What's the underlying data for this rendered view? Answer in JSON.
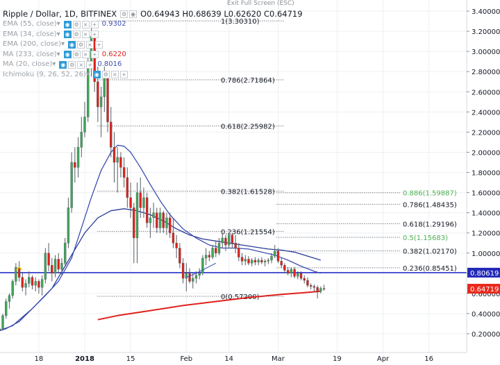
{
  "header": {
    "symbol": "Ripple / Dollar, 1D, BITFINEX",
    "ohlc": [
      {
        "label": "O",
        "value": "0.64943"
      },
      {
        "label": "H",
        "value": "0.68639"
      },
      {
        "label": "L",
        "value": "0.62620"
      },
      {
        "label": "C",
        "value": "0.64719"
      }
    ],
    "exit_fullscreen": "Exit Full Screen (ESC)"
  },
  "indicators": [
    {
      "name": "EMA (55, close)",
      "value": "0.9302",
      "value_color": "#3b4db0"
    },
    {
      "name": "EMA (34, close)",
      "value": "",
      "value_color": ""
    },
    {
      "name": "EMA (200, close)",
      "value": "",
      "value_color": ""
    },
    {
      "name": "MA (233, close)",
      "value": "0.6220",
      "value_color": "#e0201b"
    },
    {
      "name": "MA (20, close)",
      "value": "0.8016",
      "value_color": "#3b4db0"
    },
    {
      "name": "Ichimoku (9, 26, 52, 26)",
      "value": "",
      "value_color": ""
    }
  ],
  "chart_data": {
    "type": "candlestick",
    "ylim": [
      0.2,
      3.45
    ],
    "y_ticks": [
      "0.20000",
      "0.40000",
      "0.60000",
      "0.80000",
      "1.00000",
      "1.20000",
      "1.40000",
      "1.60000",
      "1.80000",
      "2.00000",
      "2.20000",
      "2.40000",
      "2.60000",
      "2.80000",
      "3.00000",
      "3.20000",
      "3.40000"
    ],
    "x_ticks": [
      "18",
      "2018",
      "15",
      "Feb",
      "14",
      "Mar",
      "19",
      "Apr",
      "16"
    ],
    "x_tick_days": [
      -14,
      0,
      14,
      31,
      44,
      59,
      77,
      91,
      105
    ],
    "x_tick_bold": [
      "2018"
    ],
    "candles": [
      [
        -27,
        0.23,
        0.24,
        0.22,
        0.24
      ],
      [
        -26,
        0.24,
        0.26,
        0.22,
        0.25
      ],
      [
        -25,
        0.25,
        0.4,
        0.24,
        0.38
      ],
      [
        -24,
        0.38,
        0.55,
        0.35,
        0.52
      ],
      [
        -23,
        0.52,
        0.6,
        0.45,
        0.58
      ],
      [
        -22,
        0.58,
        0.74,
        0.55,
        0.72
      ],
      [
        -21,
        0.72,
        0.9,
        0.68,
        0.86
      ],
      [
        -20,
        0.86,
        0.92,
        0.72,
        0.76
      ],
      [
        -19,
        0.76,
        0.8,
        0.62,
        0.66
      ],
      [
        -18,
        0.66,
        0.74,
        0.58,
        0.7
      ],
      [
        -17,
        0.7,
        0.82,
        0.66,
        0.76
      ],
      [
        -16,
        0.76,
        0.78,
        0.64,
        0.68
      ],
      [
        -15,
        0.68,
        0.76,
        0.62,
        0.72
      ],
      [
        -14,
        0.72,
        0.74,
        0.6,
        0.66
      ],
      [
        -13,
        0.66,
        0.78,
        0.58,
        0.74
      ],
      [
        -12,
        0.74,
        1.05,
        0.7,
        1.0
      ],
      [
        -11,
        1.0,
        1.1,
        0.82,
        0.88
      ],
      [
        -10,
        0.88,
        0.95,
        0.72,
        0.8
      ],
      [
        -9,
        0.8,
        0.98,
        0.76,
        0.94
      ],
      [
        -8,
        0.94,
        1.0,
        0.8,
        0.84
      ],
      [
        -7,
        0.84,
        0.95,
        0.78,
        0.9
      ],
      [
        -6,
        0.9,
        1.15,
        0.88,
        1.1
      ],
      [
        -5,
        1.1,
        1.55,
        1.05,
        1.45
      ],
      [
        -4,
        1.45,
        2.0,
        1.4,
        1.9
      ],
      [
        -3,
        1.9,
        2.05,
        1.7,
        1.85
      ],
      [
        -2,
        1.85,
        2.15,
        1.75,
        2.05
      ],
      [
        -1,
        2.05,
        2.35,
        1.95,
        2.2
      ],
      [
        0,
        2.2,
        2.5,
        2.15,
        2.35
      ],
      [
        1,
        2.35,
        2.95,
        2.3,
        2.85
      ],
      [
        2,
        2.85,
        3.3,
        2.75,
        3.15
      ],
      [
        3,
        3.15,
        3.2,
        2.6,
        2.7
      ],
      [
        4,
        2.7,
        2.85,
        2.3,
        2.45
      ],
      [
        5,
        2.45,
        2.65,
        2.15,
        2.55
      ],
      [
        6,
        2.55,
        2.85,
        2.4,
        2.75
      ],
      [
        7,
        2.75,
        2.8,
        2.2,
        2.3
      ],
      [
        8,
        2.3,
        2.45,
        1.95,
        2.05
      ],
      [
        9,
        2.05,
        2.2,
        1.7,
        1.9
      ],
      [
        10,
        1.9,
        2.05,
        1.6,
        1.95
      ],
      [
        11,
        1.95,
        2.0,
        1.75,
        1.85
      ],
      [
        12,
        1.85,
        1.95,
        1.65,
        1.75
      ],
      [
        13,
        1.75,
        1.85,
        1.45,
        1.55
      ],
      [
        14,
        1.55,
        1.7,
        1.35,
        1.45
      ],
      [
        15,
        1.45,
        1.5,
        0.9,
        1.15
      ],
      [
        16,
        1.15,
        1.7,
        0.9,
        1.6
      ],
      [
        17,
        1.6,
        1.75,
        1.35,
        1.45
      ],
      [
        18,
        1.45,
        1.65,
        1.35,
        1.55
      ],
      [
        19,
        1.55,
        1.6,
        1.25,
        1.3
      ],
      [
        20,
        1.3,
        1.45,
        1.15,
        1.35
      ],
      [
        21,
        1.35,
        1.5,
        1.25,
        1.4
      ],
      [
        22,
        1.4,
        1.45,
        1.2,
        1.25
      ],
      [
        23,
        1.25,
        1.45,
        1.2,
        1.4
      ],
      [
        24,
        1.4,
        1.42,
        1.2,
        1.25
      ],
      [
        25,
        1.25,
        1.4,
        1.18,
        1.35
      ],
      [
        26,
        1.35,
        1.4,
        1.15,
        1.2
      ],
      [
        27,
        1.2,
        1.35,
        1.05,
        1.1
      ],
      [
        28,
        1.1,
        1.18,
        0.95,
        1.05
      ],
      [
        29,
        1.05,
        1.1,
        0.85,
        0.9
      ],
      [
        30,
        0.9,
        0.95,
        0.7,
        0.75
      ],
      [
        31,
        0.75,
        0.9,
        0.62,
        0.8
      ],
      [
        32,
        0.8,
        0.85,
        0.7,
        0.72
      ],
      [
        33,
        0.72,
        0.8,
        0.65,
        0.75
      ],
      [
        34,
        0.75,
        0.82,
        0.7,
        0.78
      ],
      [
        35,
        0.78,
        0.85,
        0.74,
        0.8
      ],
      [
        36,
        0.8,
        0.98,
        0.78,
        0.95
      ],
      [
        37,
        0.95,
        1.05,
        0.88,
        0.98
      ],
      [
        38,
        0.98,
        1.02,
        0.92,
        0.96
      ],
      [
        39,
        0.96,
        1.08,
        0.94,
        1.05
      ],
      [
        40,
        1.05,
        1.12,
        0.96,
        1.0
      ],
      [
        41,
        1.0,
        1.15,
        0.98,
        1.1
      ],
      [
        42,
        1.1,
        1.2,
        1.05,
        1.15
      ],
      [
        43,
        1.15,
        1.18,
        1.02,
        1.08
      ],
      [
        44,
        1.08,
        1.2,
        1.05,
        1.18
      ],
      [
        45,
        1.18,
        1.2,
        1.05,
        1.1
      ],
      [
        46,
        1.1,
        1.18,
        1.0,
        1.05
      ],
      [
        47,
        1.05,
        1.1,
        0.92,
        0.96
      ],
      [
        48,
        0.96,
        1.0,
        0.88,
        0.92
      ],
      [
        49,
        0.92,
        0.98,
        0.88,
        0.94
      ],
      [
        50,
        0.94,
        0.97,
        0.88,
        0.9
      ],
      [
        51,
        0.9,
        0.95,
        0.87,
        0.93
      ],
      [
        52,
        0.93,
        0.96,
        0.88,
        0.91
      ],
      [
        53,
        0.91,
        0.95,
        0.88,
        0.93
      ],
      [
        54,
        0.93,
        0.96,
        0.89,
        0.91
      ],
      [
        55,
        0.91,
        0.94,
        0.87,
        0.92
      ],
      [
        56,
        0.92,
        0.95,
        0.89,
        0.93
      ],
      [
        57,
        0.93,
        1.0,
        0.9,
        0.97
      ],
      [
        58,
        0.97,
        1.08,
        0.95,
        1.02
      ],
      [
        59,
        1.02,
        1.05,
        0.9,
        0.92
      ],
      [
        60,
        0.92,
        0.95,
        0.85,
        0.88
      ],
      [
        61,
        0.88,
        0.9,
        0.8,
        0.83
      ],
      [
        62,
        0.83,
        0.86,
        0.78,
        0.8
      ],
      [
        63,
        0.8,
        0.86,
        0.76,
        0.84
      ],
      [
        64,
        0.84,
        0.86,
        0.75,
        0.77
      ],
      [
        65,
        0.77,
        0.82,
        0.74,
        0.8
      ],
      [
        66,
        0.8,
        0.82,
        0.73,
        0.75
      ],
      [
        67,
        0.75,
        0.78,
        0.7,
        0.73
      ],
      [
        68,
        0.73,
        0.76,
        0.66,
        0.68
      ],
      [
        69,
        0.68,
        0.7,
        0.64,
        0.67
      ],
      [
        70,
        0.67,
        0.69,
        0.62,
        0.66
      ],
      [
        71,
        0.66,
        0.68,
        0.55,
        0.62
      ],
      [
        72,
        0.62,
        0.67,
        0.6,
        0.65
      ],
      [
        73,
        0.6494,
        0.6864,
        0.6262,
        0.6472
      ]
    ],
    "ma_20": [
      [
        -27,
        0.22
      ],
      [
        -24,
        0.25
      ],
      [
        -20,
        0.32
      ],
      [
        -16,
        0.45
      ],
      [
        -12,
        0.58
      ],
      [
        -8,
        0.72
      ],
      [
        -4,
        0.95
      ],
      [
        -1,
        1.25
      ],
      [
        2,
        1.55
      ],
      [
        5,
        1.82
      ],
      [
        8,
        2.0
      ],
      [
        10,
        2.07
      ],
      [
        12,
        2.06
      ],
      [
        14,
        2.0
      ],
      [
        17,
        1.85
      ],
      [
        20,
        1.68
      ],
      [
        23,
        1.52
      ],
      [
        26,
        1.38
      ],
      [
        30,
        1.24
      ],
      [
        34,
        1.15
      ],
      [
        38,
        1.08
      ],
      [
        42,
        1.05
      ],
      [
        46,
        1.05
      ],
      [
        50,
        1.04
      ],
      [
        54,
        1.01
      ],
      [
        58,
        0.98
      ],
      [
        62,
        0.93
      ],
      [
        66,
        0.87
      ],
      [
        70,
        0.82
      ],
      [
        72,
        0.8
      ]
    ],
    "ema_55": [
      [
        -27,
        0.22
      ],
      [
        -22,
        0.28
      ],
      [
        -16,
        0.45
      ],
      [
        -10,
        0.65
      ],
      [
        -4,
        0.98
      ],
      [
        0,
        1.2
      ],
      [
        4,
        1.35
      ],
      [
        8,
        1.42
      ],
      [
        12,
        1.44
      ],
      [
        16,
        1.42
      ],
      [
        20,
        1.38
      ],
      [
        24,
        1.32
      ],
      [
        28,
        1.24
      ],
      [
        32,
        1.18
      ],
      [
        36,
        1.14
      ],
      [
        40,
        1.12
      ],
      [
        44,
        1.1
      ],
      [
        48,
        1.08
      ],
      [
        52,
        1.06
      ],
      [
        56,
        1.04
      ],
      [
        60,
        1.03
      ],
      [
        64,
        1.01
      ],
      [
        68,
        0.97
      ],
      [
        72,
        0.93
      ]
    ],
    "ma_233": [
      [
        4,
        0.34
      ],
      [
        10,
        0.38
      ],
      [
        20,
        0.43
      ],
      [
        30,
        0.48
      ],
      [
        40,
        0.52
      ],
      [
        50,
        0.56
      ],
      [
        60,
        0.59
      ],
      [
        66,
        0.605
      ],
      [
        72,
        0.622
      ]
    ],
    "support_level": 0.80619,
    "fibonacci_main": [
      {
        "label": "1(3.30310)",
        "value": 3.3031
      },
      {
        "label": "0.786(2.71864)",
        "value": 2.71864
      },
      {
        "label": "0.618(2.25982)",
        "value": 2.25982
      },
      {
        "label": "0.382(1.61528)",
        "value": 1.61528
      },
      {
        "label": "0.236(1.21554)",
        "value": 1.21554
      },
      {
        "label": "0(0.57200)",
        "value": 0.572
      }
    ],
    "fibonacci_retrace": [
      {
        "label": "0.886(1.59887)",
        "value": 1.59887,
        "color": "#4caf50"
      },
      {
        "label": "0.786(1.48435)",
        "value": 1.48435,
        "color": "#131722"
      },
      {
        "label": "0.618(1.29196)",
        "value": 1.29196,
        "color": "#131722"
      },
      {
        "label": "0.5(1.15683)",
        "value": 1.15683,
        "color": "#4caf50"
      },
      {
        "label": "0.382(1.02170)",
        "value": 1.0217,
        "color": "#131722"
      },
      {
        "label": "0.236(0.85451)",
        "value": 0.85451,
        "color": "#131722"
      }
    ],
    "price_tags": [
      {
        "label": "0.80619",
        "value": 0.80619,
        "color": "#2229b8"
      },
      {
        "label": "0.64719",
        "value": 0.64719,
        "color": "#e8291c"
      }
    ],
    "colors": {
      "up": "#3fa65a",
      "down": "#e0201b",
      "ma_20": "#3b4db0",
      "ema_55": "#2a3a98",
      "ma_233": "#e0201b",
      "support": "#1a24c8"
    }
  }
}
